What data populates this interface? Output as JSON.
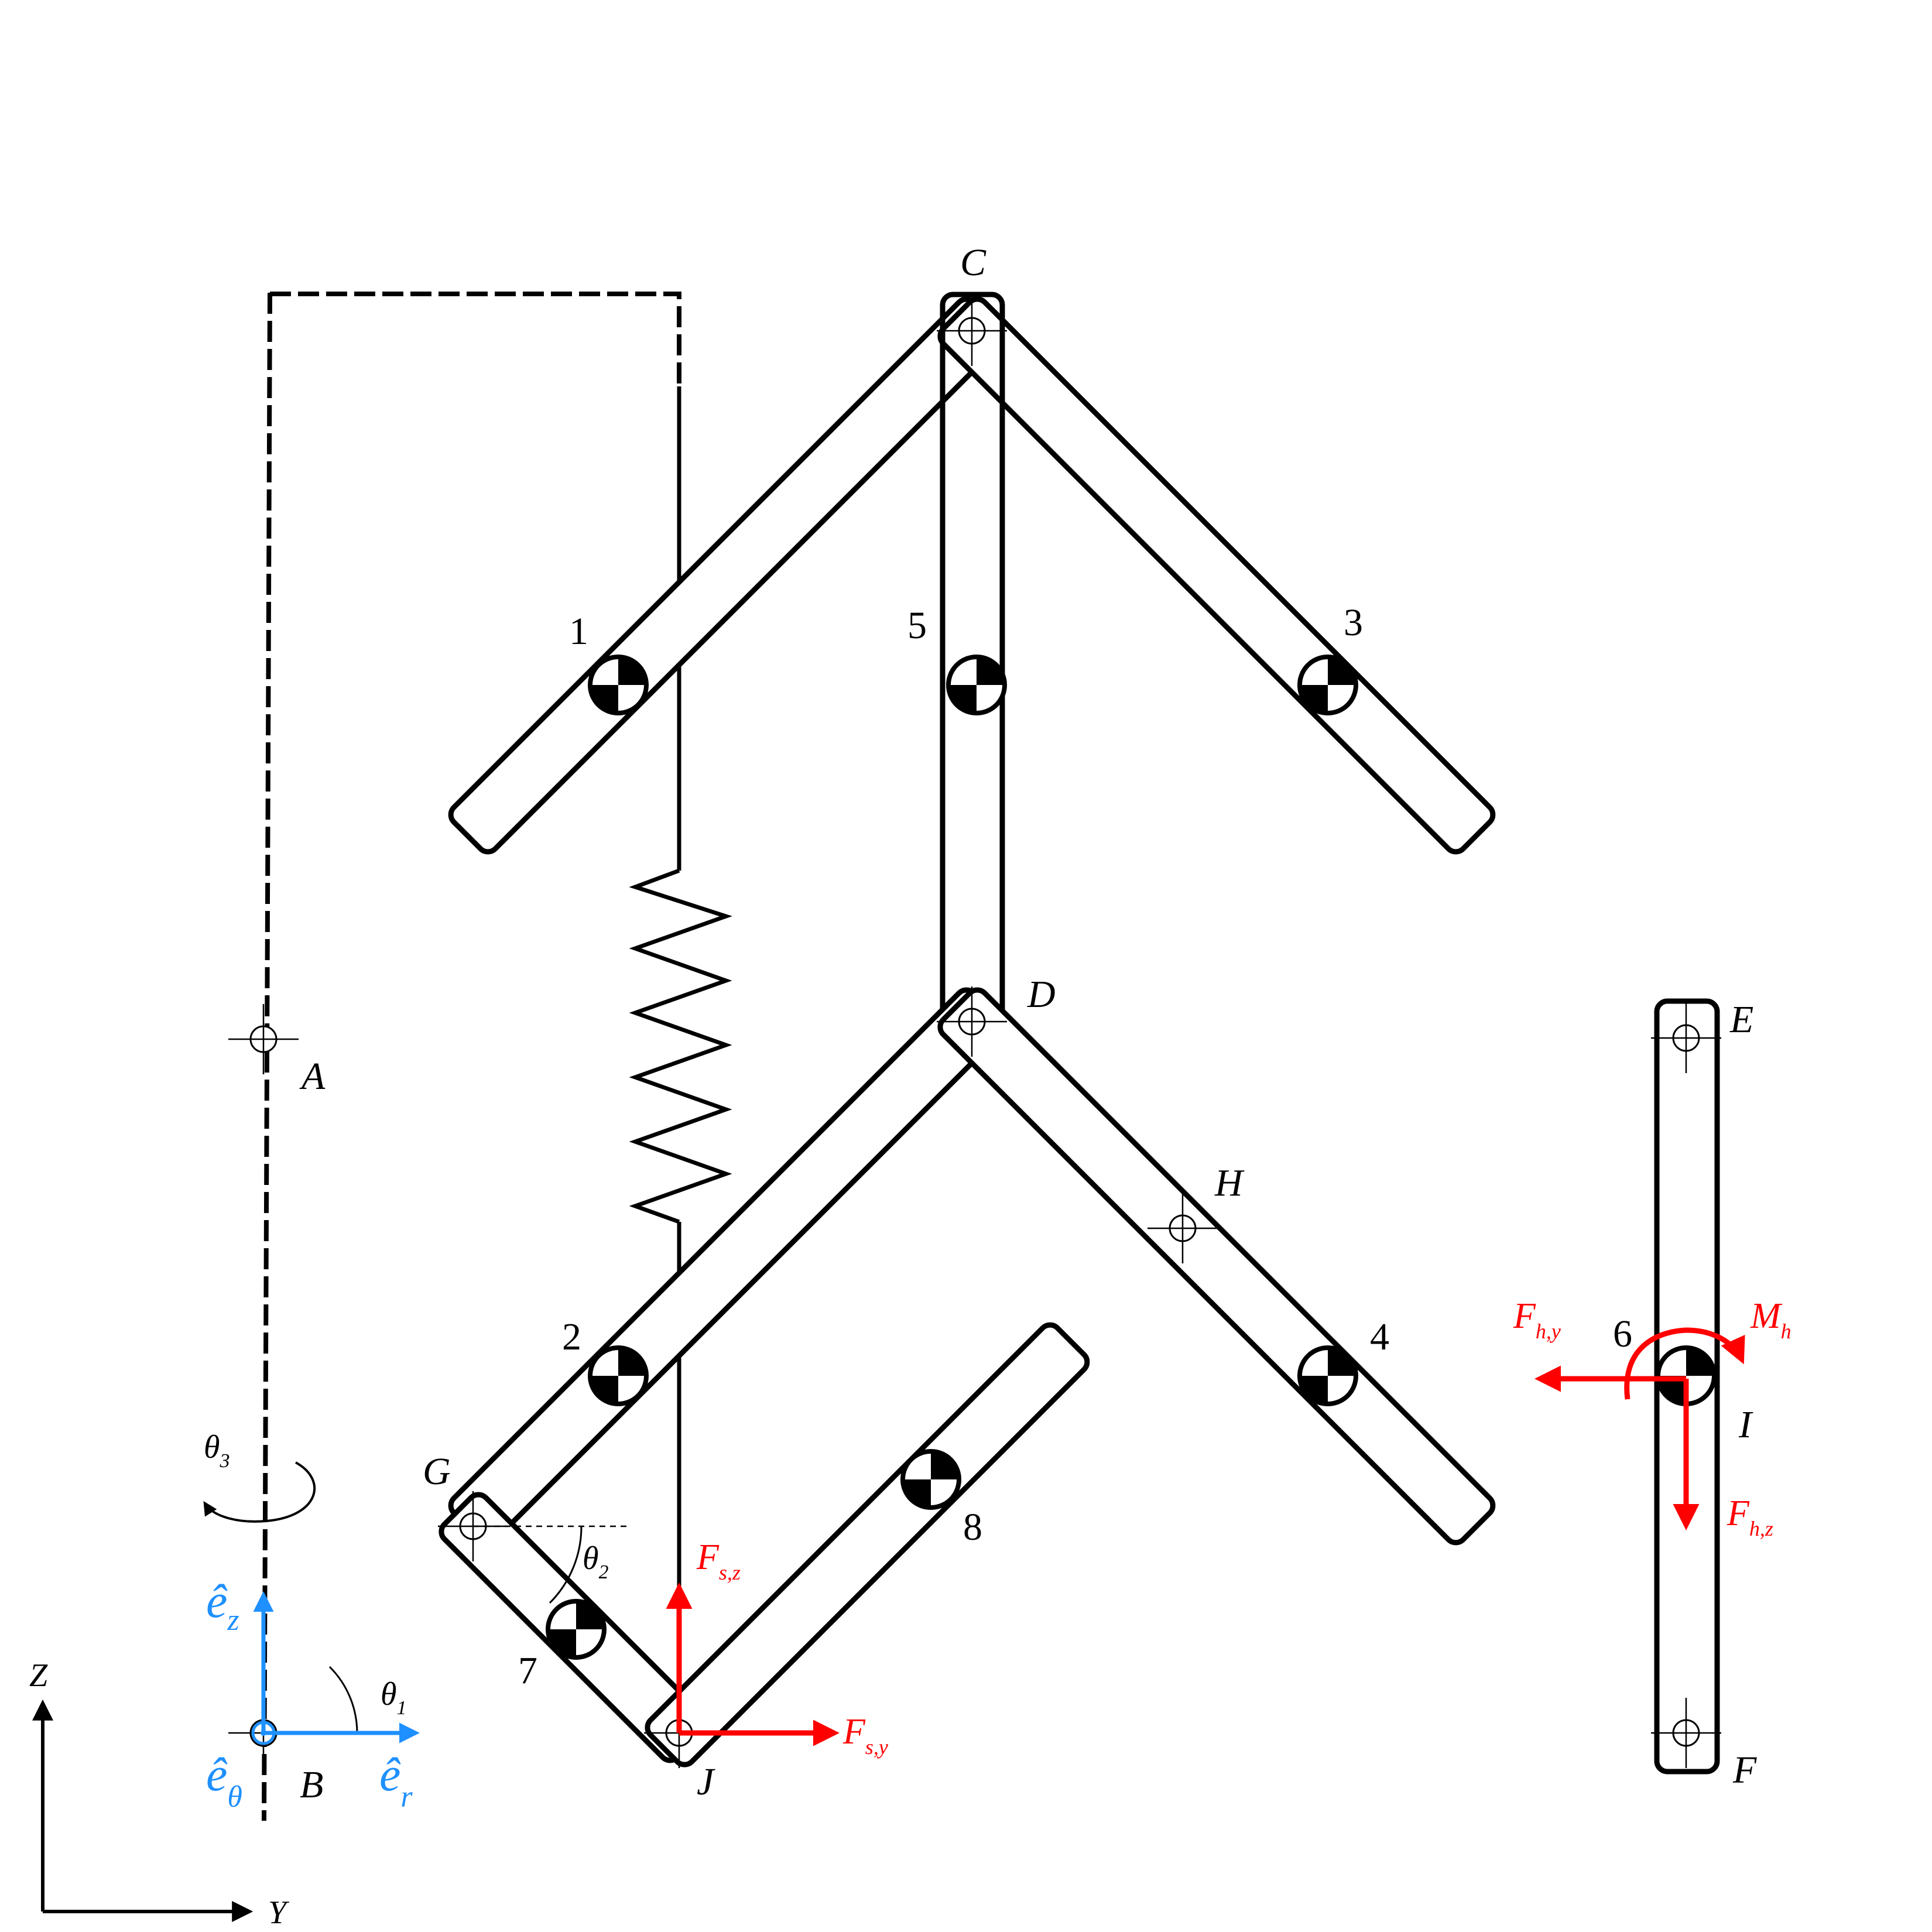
{
  "points": {
    "A": "A",
    "B": "B",
    "C": "C",
    "D": "D",
    "E": "E",
    "F": "F",
    "G": "G",
    "H": "H",
    "I": "I",
    "J": "J"
  },
  "links": [
    "1",
    "2",
    "3",
    "4",
    "5",
    "6",
    "7",
    "8"
  ],
  "frame": {
    "z": "Z",
    "y": "Y"
  },
  "angles": {
    "theta1": {
      "sym": "θ",
      "sub": "1"
    },
    "theta2": {
      "sym": "θ",
      "sub": "2"
    },
    "theta3": {
      "sym": "θ",
      "sub": "3"
    }
  },
  "unit_vectors": {
    "ez": {
      "sym": "ê",
      "sub": "z"
    },
    "etheta": {
      "sym": "ê",
      "sub": "θ"
    },
    "er": {
      "sym": "ê",
      "sub": "r"
    }
  },
  "forces": {
    "fsz": {
      "sym": "F",
      "sub": "s,z"
    },
    "fsy": {
      "sym": "F",
      "sub": "s,y"
    },
    "fhy": {
      "sym": "F",
      "sub": "h,y"
    },
    "fhz": {
      "sym": "F",
      "sub": "h,z"
    },
    "mh": {
      "sym": "M",
      "sub": "h"
    }
  },
  "colors": {
    "force": "#ff0000",
    "unit_vector": "#1e90ff",
    "structure": "#000000"
  }
}
